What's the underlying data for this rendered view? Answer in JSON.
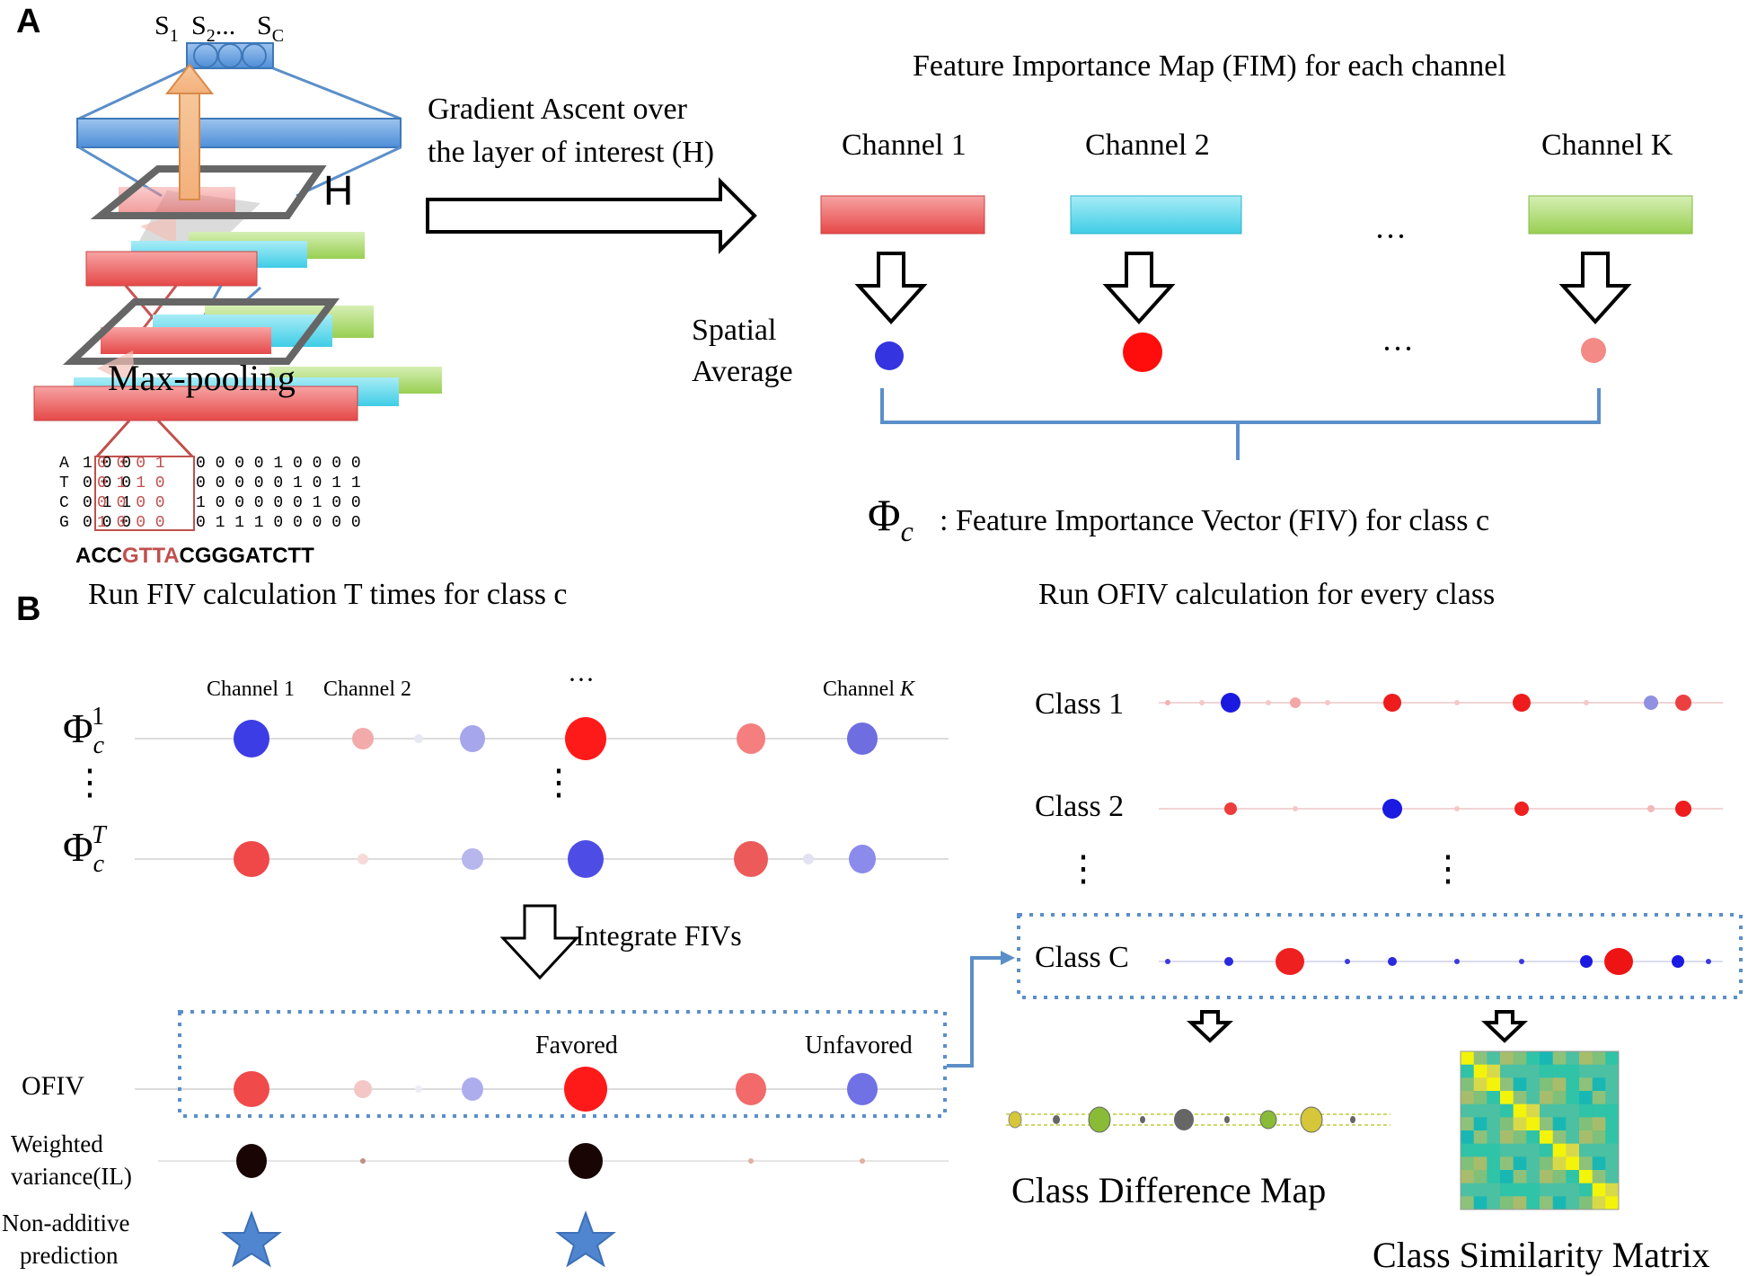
{
  "panels": {
    "a": "A",
    "b": "B"
  },
  "cnn": {
    "output_units": [
      "S",
      "S",
      "S"
    ],
    "output_subscripts": [
      "1",
      "2",
      "C"
    ],
    "output_ellipsis": "...",
    "layer_h": "H",
    "maxpool": "Max-pooling",
    "dna_rows": [
      {
        "base": "A",
        "left": "1 0 0",
        "mid": "0 0 0 1",
        "right": "0 0 0 0 1 0 0 0 0"
      },
      {
        "base": "T",
        "left": "0 0 0",
        "mid": "0 1 1 0",
        "right": "0 0 0 0 0 1 0 1 1"
      },
      {
        "base": "C",
        "left": "0 1 1",
        "mid": "0 0 0 0",
        "right": "1 0 0 0 0 0 1 0 0"
      },
      {
        "base": "G",
        "left": "0 0 0",
        "mid": "1 0 0 0",
        "right": "0 1 1 1 0 0 0 0 0"
      }
    ],
    "sequence": {
      "pre": "ACC",
      "motif": "GTTA",
      "post": "CGGGATCTT"
    }
  },
  "gradient": {
    "line1": "Gradient Ascent over",
    "line2": "the layer of interest (H)"
  },
  "fim": {
    "title": "Feature Importance Map (FIM) for each channel",
    "channels": [
      "Channel 1",
      "Channel 2",
      "Channel K"
    ],
    "ellipsis": "···",
    "spatial_average": [
      "Spatial",
      "Average"
    ],
    "phi_label": "Φ",
    "phi_sub": "c",
    "fiv_text": ":  Feature Importance Vector (FIV) for class c"
  },
  "panel_b": {
    "left_title": "Run FIV calculation T times for class c",
    "right_title": "Run OFIV calculation for every class",
    "channel_headers": [
      "Channel 1",
      "Channel 2",
      "···",
      "Channel K"
    ],
    "row1_phi": {
      "sym": "Φ",
      "sub": "c",
      "sup": "1"
    },
    "rowT_phi": {
      "sym": "Φ",
      "sub": "c",
      "sup": "T"
    },
    "vdots": "⋮",
    "integrate": "Integrate FIVs",
    "ofiv": "OFIV",
    "favored": "Favored",
    "unfavored": "Unfavored",
    "weighted": [
      "Weighted",
      "variance(IL)"
    ],
    "nonadditive": [
      "Non-additive",
      "prediction"
    ],
    "classes": [
      "Class 1",
      "Class 2",
      "Class C"
    ],
    "class_diff": "Class Difference Map",
    "class_sim": "Class Similarity Matrix"
  },
  "colors": {
    "red": "#ee3b3b",
    "cyan": "#45d3ea",
    "green": "#9fd35a",
    "blue_box": "#5b9bd5",
    "dot_blue": "#1f2ee6",
    "dot_red": "#ff1010",
    "dot_pink": "#f48a84",
    "motif": "#c0504d"
  }
}
